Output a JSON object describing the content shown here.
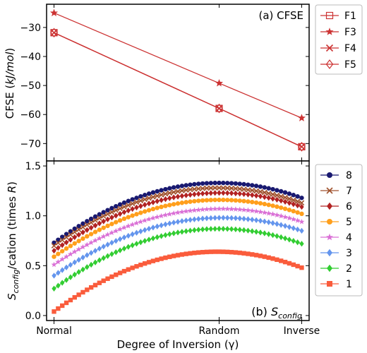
{
  "figure": {
    "xlabel": "Degree of Inversion (γ)",
    "xtick_labels": [
      "Normal",
      "Random",
      "Inverse"
    ]
  },
  "chart_data": [
    {
      "type": "line",
      "panel_label": "(a) CFSE",
      "ylabel": "CFSE (kJ/mol)",
      "ylabel_parts": {
        "prefix": "CFSE (",
        "unit": "kJ/mol",
        "suffix": ")"
      },
      "x": [
        0,
        0.6667,
        1.0
      ],
      "xlim": [
        -0.03,
        1.03
      ],
      "ylim": [
        -76,
        -22
      ],
      "yticks": [
        -70,
        -60,
        -50,
        -40,
        -30
      ],
      "line_color": "#cc3333",
      "legend_position": "right, outside",
      "series": [
        {
          "name": "F1",
          "marker": "square-open",
          "values": [
            -31.8,
            -57.9,
            -71.1
          ]
        },
        {
          "name": "F3",
          "marker": "star",
          "values": [
            -25.0,
            -49.2,
            -61.2
          ]
        },
        {
          "name": "F4",
          "marker": "x",
          "values": [
            -31.8,
            -57.9,
            -71.1
          ]
        },
        {
          "name": "F5",
          "marker": "diamond-open",
          "values": [
            -31.8,
            -57.9,
            -71.1
          ]
        }
      ]
    },
    {
      "type": "line",
      "panel_label_prefix": "(b) ",
      "panel_label_main": "S",
      "panel_label_sub": "config",
      "ylabel_main": "S",
      "ylabel_sub": "config",
      "ylabel_mid": "/cation (times ",
      "ylabel_italic": "R",
      "ylabel_end": ")",
      "x_range": [
        0,
        1
      ],
      "random_x": 0.6667,
      "xlim": [
        -0.03,
        1.03
      ],
      "ylim": [
        -0.05,
        1.55
      ],
      "yticks": [
        0.0,
        0.5,
        1.0,
        1.5
      ],
      "ytick_labels": [
        "0.0",
        "0.5",
        "1.0",
        "1.5"
      ],
      "legend_position": "right, outside",
      "series": [
        {
          "name": "8",
          "color": "#191970",
          "marker": "circle",
          "normal": 0.73,
          "max": 1.33,
          "inverse": 1.18
        },
        {
          "name": "7",
          "color": "#a0522d",
          "marker": "x",
          "normal": 0.7,
          "max": 1.28,
          "inverse": 1.13
        },
        {
          "name": "6",
          "color": "#b22222",
          "marker": "diamond",
          "normal": 0.65,
          "max": 1.23,
          "inverse": 1.09
        },
        {
          "name": "5",
          "color": "#ff9f1c",
          "marker": "circle",
          "normal": 0.59,
          "max": 1.16,
          "inverse": 1.02
        },
        {
          "name": "4",
          "color": "#da70d6",
          "marker": "star",
          "normal": 0.51,
          "max": 1.07,
          "inverse": 0.94
        },
        {
          "name": "3",
          "color": "#6495ed",
          "marker": "diamond",
          "normal": 0.4,
          "max": 0.98,
          "inverse": 0.85
        },
        {
          "name": "2",
          "color": "#32cd32",
          "marker": "diamond",
          "normal": 0.27,
          "max": 0.87,
          "inverse": 0.72
        },
        {
          "name": "1",
          "color": "#fa5c3c",
          "marker": "square",
          "normal": 0.04,
          "max": 0.64,
          "inverse": 0.48
        }
      ]
    }
  ]
}
